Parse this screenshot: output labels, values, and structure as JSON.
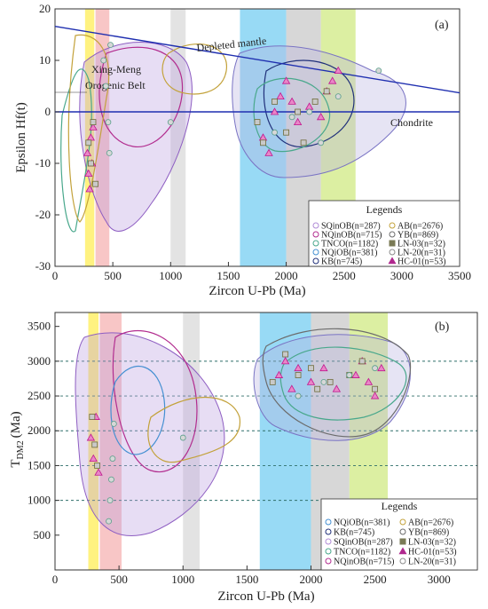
{
  "chart_data": [
    {
      "type": "scatter",
      "panel_label": "(a)",
      "xlabel": "Zircon U-Pb (Ma)",
      "ylabel": "Epsilon Hf(t)",
      "xlim": [
        0,
        3500
      ],
      "ylim": [
        -30,
        20
      ],
      "x_ticks": [
        "0",
        "500",
        "1000",
        "1500",
        "2000",
        "2500",
        "3000",
        "3500"
      ],
      "y_ticks": [
        "20",
        "10",
        "0",
        "-10",
        "-20",
        "-30"
      ],
      "annotations": [
        "Depleted mantle",
        "Chondrite",
        "Xing-Meng",
        "Orogenic Belt"
      ],
      "reference_lines": [
        {
          "name": "Depleted mantle",
          "x": [
            0,
            3500
          ],
          "y": [
            16.6,
            3.7
          ]
        },
        {
          "name": "Chondrite",
          "x": [
            0,
            3500
          ],
          "y": [
            0,
            0
          ]
        }
      ],
      "bands": [
        {
          "x": [
            260,
            340
          ],
          "color": "#fff06a"
        },
        {
          "x": [
            350,
            470
          ],
          "color": "#f7bcbc"
        },
        {
          "x": [
            1000,
            1130
          ],
          "color": "#dedede"
        },
        {
          "x": [
            1600,
            2000
          ],
          "color": "#86d3f3"
        },
        {
          "x": [
            2000,
            2300
          ],
          "color": "#d0d0d0"
        },
        {
          "x": [
            2300,
            2600
          ],
          "color": "#d6ec92"
        }
      ],
      "legend_title": "Legends",
      "legend": [
        "SQinOB(n=287)",
        "AB(n=2676)",
        "NQinOB(n=715)",
        "YB(n=869)",
        "TNCO(n=1182)",
        "LN-03(n=32)",
        "NQiOB(n=381)",
        "LN-20(n=31)",
        "KB(n=745)",
        "HC-01(n=53)"
      ],
      "series": [
        {
          "name": "HC-01(n=53)",
          "marker": "triangle",
          "x": [
            280,
            290,
            300,
            310,
            320,
            330,
            1800,
            1850,
            1900,
            1950,
            2000,
            2050,
            2100,
            2200,
            2300,
            2350,
            2400,
            2450
          ],
          "y": [
            -8,
            -12,
            -15,
            -5,
            -10,
            -3,
            -5,
            -8,
            0,
            3,
            6,
            2,
            -2,
            1,
            -1,
            4,
            6,
            8
          ]
        },
        {
          "name": "LN-03(n=32)",
          "marker": "square",
          "x": [
            290,
            310,
            330,
            350,
            1750,
            1800,
            1900,
            2000,
            2100,
            2150,
            2250,
            2350
          ],
          "y": [
            -6,
            -10,
            -2,
            -14,
            -2,
            -6,
            2,
            -4,
            0,
            -6,
            2,
            4
          ]
        },
        {
          "name": "LN-20(n=31)",
          "marker": "circle",
          "x": [
            420,
            440,
            460,
            470,
            480,
            1000,
            1900,
            2050,
            2200,
            2300,
            2450,
            2800
          ],
          "y": [
            10,
            5,
            -2,
            -8,
            13,
            -2,
            -4,
            -1,
            0,
            -6,
            3,
            8
          ]
        }
      ]
    },
    {
      "type": "scatter",
      "panel_label": "(b)",
      "xlabel": "Zircon U-Pb (Ma)",
      "ylabel_main": "T",
      "ylabel_sub": "DM2",
      "ylabel_unit": "(Ma)",
      "xlim": [
        0,
        3300
      ],
      "ylim": [
        0,
        3700
      ],
      "x_ticks": [
        "0",
        "500",
        "1000",
        "1500",
        "2000",
        "2500",
        "3000"
      ],
      "y_ticks": [
        "3500",
        "3000",
        "2500",
        "2000",
        "1500",
        "1000",
        "500"
      ],
      "dashed_levels": [
        3000,
        2500,
        2000,
        1500,
        1000
      ],
      "bands": [
        {
          "x": [
            260,
            340
          ],
          "color": "#fff06a"
        },
        {
          "x": [
            350,
            520
          ],
          "color": "#f7bcbc"
        },
        {
          "x": [
            1000,
            1130
          ],
          "color": "#dedede"
        },
        {
          "x": [
            1600,
            2000
          ],
          "color": "#86d3f3"
        },
        {
          "x": [
            2000,
            2300
          ],
          "color": "#d0d0d0"
        },
        {
          "x": [
            2300,
            2600
          ],
          "color": "#d6ec92"
        }
      ],
      "legend_title": "Legends",
      "legend": [
        "NQiOB(n=381)",
        "AB(n=2676)",
        "KB(n=745)",
        "YB(n=869)",
        "SQinOB(n=287)",
        "LN-03(n=32)",
        "TNCO(n=1182)",
        "HC-01(n=53)",
        "NQinOB(n=715)",
        "LN-20(n=31)"
      ],
      "series": [
        {
          "name": "HC-01(n=53)",
          "marker": "triangle",
          "x": [
            280,
            300,
            320,
            340,
            1750,
            1800,
            1850,
            1900,
            2000,
            2100,
            2200,
            2350,
            2400,
            2450,
            2500,
            2550
          ],
          "y": [
            1900,
            1600,
            2200,
            1400,
            2800,
            3000,
            2600,
            2900,
            2700,
            2900,
            2600,
            2800,
            3000,
            2700,
            2500,
            2900
          ]
        },
        {
          "name": "LN-03(n=32)",
          "marker": "square",
          "x": [
            290,
            310,
            330,
            1700,
            1800,
            1900,
            2000,
            2050,
            2150,
            2300,
            2400,
            2500
          ],
          "y": [
            2200,
            1800,
            1500,
            2700,
            3100,
            2800,
            2900,
            2600,
            2700,
            2800,
            3000,
            2600
          ]
        },
        {
          "name": "LN-20(n=31)",
          "marker": "circle",
          "x": [
            420,
            430,
            440,
            450,
            460,
            1000,
            1900,
            2100,
            2300,
            2500
          ],
          "y": [
            700,
            1000,
            1300,
            1600,
            2100,
            1900,
            2500,
            2700,
            2800,
            2900
          ]
        }
      ]
    }
  ],
  "colors": {
    "depleted_line": "#1f2fb0",
    "chondrite_line": "#1f2fb0",
    "marker_fill": "#e986c7",
    "marker_stroke": "#c0168e",
    "square_fill": "#c9c9c9",
    "square_stroke": "#6f6b3a",
    "circle_fill": "#d7d7d7",
    "circle_stroke": "#5a9f8b"
  },
  "legend_marker_colors": {
    "SQinOB(n=287)": "#b08bd6",
    "AB(n=2676)": "#c3a23b",
    "NQinOB(n=715)": "#b22d8f",
    "YB(n=869)": "#6c6c6c",
    "TNCO(n=1182)": "#49a88c",
    "LN-03(n=32)": "#7a7a55",
    "NQiOB(n=381)": "#4590d2",
    "LN-20(n=31)": "#8c8c8c",
    "KB(n=745)": "#20307a",
    "HC-01(n=53)": "#b0288e"
  }
}
